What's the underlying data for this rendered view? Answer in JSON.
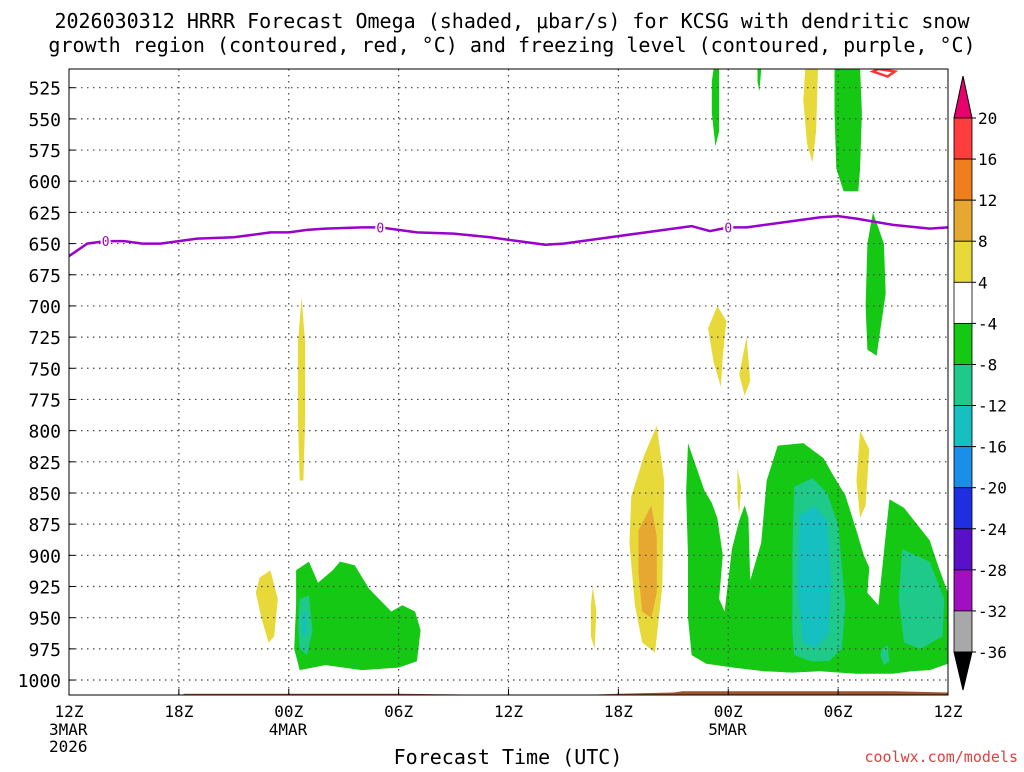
{
  "title_line1": "2026030312 HRRR Forecast Omega (shaded, μbar/s) for KCSG with dendritic snow",
  "title_line2": "growth region (contoured, red, °C) and freezing level (contoured, purple, °C)",
  "credit": "coolwx.com/models",
  "colors": {
    "freezing_level": "#9a00cc",
    "dendritic": "#ff3333",
    "ground": "#a0522d"
  },
  "chart_data": {
    "type": "contour-time-height",
    "xlabel": "Forecast Time (UTC)",
    "x_range_hours": [
      0,
      48
    ],
    "x_ticks": [
      {
        "h": 0,
        "label": "12Z",
        "sub": [
          "3MAR",
          "2026"
        ]
      },
      {
        "h": 6,
        "label": "18Z",
        "sub": []
      },
      {
        "h": 12,
        "label": "00Z",
        "sub": [
          "4MAR"
        ]
      },
      {
        "h": 18,
        "label": "06Z",
        "sub": []
      },
      {
        "h": 24,
        "label": "12Z",
        "sub": []
      },
      {
        "h": 30,
        "label": "18Z",
        "sub": []
      },
      {
        "h": 36,
        "label": "00Z",
        "sub": [
          "5MAR"
        ]
      },
      {
        "h": 42,
        "label": "06Z",
        "sub": []
      },
      {
        "h": 48,
        "label": "12Z",
        "sub": []
      }
    ],
    "y_axis_pressure_levels_hPa": [
      525,
      550,
      575,
      600,
      625,
      650,
      675,
      700,
      725,
      750,
      775,
      800,
      825,
      850,
      875,
      900,
      925,
      950,
      975,
      1000
    ],
    "y_range_hPa": [
      510,
      1012
    ],
    "colorbar": {
      "labels": [
        "20",
        "16",
        "12",
        "8",
        "4",
        "-4",
        "-8",
        "-12",
        "-16",
        "-20",
        "-24",
        "-28",
        "-32",
        "-36"
      ],
      "colors": [
        "#e8006c",
        "#ff3d3d",
        "#ee7f1c",
        "#e6a830",
        "#e8d93a",
        "#ffffff",
        "#14c814",
        "#1ec98a",
        "#16c0c0",
        "#1b8ee8",
        "#1f2ee0",
        "#5a10c8",
        "#a010c0",
        "#a8a8a8",
        "#000000"
      ]
    },
    "freezing_level_line": {
      "label": "0",
      "label_at_hours": [
        2,
        17,
        36
      ],
      "points": [
        [
          0,
          660
        ],
        [
          1,
          650
        ],
        [
          2,
          648
        ],
        [
          3,
          648
        ],
        [
          4,
          650
        ],
        [
          5,
          650
        ],
        [
          6,
          648
        ],
        [
          7,
          646
        ],
        [
          9,
          645
        ],
        [
          10,
          643
        ],
        [
          11,
          641
        ],
        [
          12,
          641
        ],
        [
          13,
          639
        ],
        [
          14,
          638
        ],
        [
          16,
          637
        ],
        [
          17,
          637
        ],
        [
          18,
          639
        ],
        [
          19,
          641
        ],
        [
          21,
          642
        ],
        [
          23,
          645
        ],
        [
          25,
          649
        ],
        [
          26,
          651
        ],
        [
          27,
          650
        ],
        [
          29,
          646
        ],
        [
          31,
          642
        ],
        [
          33,
          638
        ],
        [
          34,
          636
        ],
        [
          35,
          640
        ],
        [
          36,
          637
        ],
        [
          37,
          637
        ],
        [
          39,
          633
        ],
        [
          41,
          629
        ],
        [
          42,
          628
        ],
        [
          43,
          630
        ],
        [
          45,
          635
        ],
        [
          47,
          638
        ],
        [
          48,
          637
        ]
      ]
    },
    "omega_regions": [
      {
        "color": "#e8d93a",
        "points": [
          [
            12.7,
            693
          ],
          [
            12.9,
            730
          ],
          [
            12.9,
            790
          ],
          [
            12.8,
            840
          ],
          [
            12.6,
            840
          ],
          [
            12.5,
            790
          ],
          [
            12.5,
            730
          ]
        ]
      },
      {
        "color": "#e8d93a",
        "points": [
          [
            10.4,
            918
          ],
          [
            11.0,
            912
          ],
          [
            11.4,
            935
          ],
          [
            11.2,
            965
          ],
          [
            10.9,
            970
          ],
          [
            10.5,
            950
          ],
          [
            10.2,
            930
          ]
        ]
      },
      {
        "color": "#14c814",
        "points": [
          [
            12.4,
            912
          ],
          [
            13.1,
            905
          ],
          [
            13.6,
            922
          ],
          [
            14.4,
            912
          ],
          [
            14.8,
            905
          ],
          [
            15.6,
            908
          ],
          [
            16.4,
            927
          ],
          [
            17.6,
            945
          ],
          [
            18.2,
            940
          ],
          [
            18.9,
            945
          ],
          [
            19.2,
            960
          ],
          [
            19.0,
            985
          ],
          [
            18.0,
            990
          ],
          [
            16.0,
            992
          ],
          [
            14.0,
            988
          ],
          [
            12.6,
            992
          ],
          [
            12.3,
            975
          ],
          [
            12.4,
            940
          ]
        ]
      },
      {
        "color": "#1ec98a",
        "points": [
          [
            12.6,
            935
          ],
          [
            13.1,
            932
          ],
          [
            13.3,
            960
          ],
          [
            13.0,
            980
          ],
          [
            12.6,
            975
          ],
          [
            12.5,
            955
          ]
        ]
      },
      {
        "color": "#16c0c0",
        "points": [
          [
            12.7,
            945
          ],
          [
            12.95,
            945
          ],
          [
            13.0,
            962
          ],
          [
            12.75,
            965
          ]
        ]
      },
      {
        "color": "#e8d93a",
        "points": [
          [
            28.6,
            925
          ],
          [
            28.8,
            945
          ],
          [
            28.7,
            975
          ],
          [
            28.5,
            965
          ],
          [
            28.5,
            940
          ]
        ]
      },
      {
        "color": "#e8d93a",
        "points": [
          [
            30.7,
            853
          ],
          [
            31.4,
            820
          ],
          [
            32.1,
            796
          ],
          [
            32.5,
            840
          ],
          [
            32.4,
            925
          ],
          [
            32.0,
            978
          ],
          [
            31.3,
            970
          ],
          [
            30.9,
            940
          ],
          [
            30.6,
            890
          ]
        ]
      },
      {
        "color": "#e6a830",
        "points": [
          [
            31.1,
            880
          ],
          [
            31.8,
            860
          ],
          [
            32.1,
            885
          ],
          [
            32.1,
            930
          ],
          [
            31.8,
            950
          ],
          [
            31.3,
            945
          ],
          [
            31.1,
            915
          ]
        ]
      },
      {
        "color": "#14c814",
        "points": [
          [
            35.2,
            510
          ],
          [
            35.5,
            510
          ],
          [
            35.5,
            560
          ],
          [
            35.3,
            572
          ],
          [
            35.1,
            545
          ],
          [
            35.1,
            520
          ]
        ]
      },
      {
        "color": "#14c814",
        "points": [
          [
            37.6,
            510
          ],
          [
            37.8,
            510
          ],
          [
            37.7,
            528
          ],
          [
            37.6,
            520
          ]
        ]
      },
      {
        "color": "#e8d93a",
        "points": [
          [
            40.2,
            510
          ],
          [
            40.9,
            510
          ],
          [
            40.8,
            560
          ],
          [
            40.6,
            585
          ],
          [
            40.3,
            570
          ],
          [
            40.1,
            535
          ]
        ]
      },
      {
        "color": "#14c814",
        "points": [
          [
            41.8,
            510
          ],
          [
            43.2,
            510
          ],
          [
            43.3,
            545
          ],
          [
            43.2,
            590
          ],
          [
            43.1,
            608
          ],
          [
            42.3,
            608
          ],
          [
            41.9,
            590
          ],
          [
            41.8,
            545
          ]
        ]
      },
      {
        "color": "#e8d93a",
        "points": [
          [
            35.4,
            700
          ],
          [
            35.9,
            712
          ],
          [
            35.7,
            740
          ],
          [
            35.6,
            765
          ],
          [
            35.2,
            745
          ],
          [
            34.9,
            718
          ]
        ]
      },
      {
        "color": "#e8d93a",
        "points": [
          [
            37.0,
            725
          ],
          [
            37.2,
            760
          ],
          [
            36.9,
            772
          ],
          [
            36.6,
            755
          ]
        ]
      },
      {
        "color": "#e8d93a",
        "points": [
          [
            36.5,
            830
          ],
          [
            36.7,
            845
          ],
          [
            36.6,
            868
          ],
          [
            36.5,
            855
          ]
        ]
      },
      {
        "color": "#e8d93a",
        "points": [
          [
            43.2,
            800
          ],
          [
            43.7,
            815
          ],
          [
            43.5,
            860
          ],
          [
            43.2,
            870
          ],
          [
            43.0,
            840
          ]
        ]
      },
      {
        "color": "#14c814",
        "points": [
          [
            43.9,
            625
          ],
          [
            44.5,
            650
          ],
          [
            44.6,
            690
          ],
          [
            44.3,
            720
          ],
          [
            44.1,
            740
          ],
          [
            43.6,
            735
          ],
          [
            43.5,
            700
          ],
          [
            43.6,
            650
          ]
        ]
      },
      {
        "color": "#14c814",
        "points": [
          [
            33.8,
            810
          ],
          [
            34.7,
            848
          ],
          [
            35.1,
            858
          ],
          [
            35.4,
            870
          ],
          [
            35.7,
            900
          ],
          [
            35.5,
            935
          ],
          [
            35.8,
            945
          ],
          [
            36.2,
            895
          ],
          [
            36.6,
            872
          ],
          [
            36.9,
            860
          ],
          [
            37.1,
            870
          ],
          [
            37.2,
            920
          ],
          [
            37.8,
            890
          ],
          [
            38.1,
            840
          ],
          [
            38.7,
            812
          ],
          [
            40.1,
            810
          ],
          [
            41.2,
            822
          ],
          [
            41.7,
            835
          ],
          [
            42.4,
            852
          ],
          [
            43.0,
            880
          ],
          [
            43.4,
            900
          ],
          [
            43.7,
            910
          ],
          [
            43.6,
            930
          ],
          [
            44.2,
            940
          ],
          [
            44.8,
            855
          ],
          [
            45.6,
            862
          ],
          [
            47.0,
            888
          ],
          [
            47.5,
            910
          ],
          [
            48.0,
            930
          ],
          [
            48.0,
            987
          ],
          [
            47.0,
            992
          ],
          [
            46.0,
            993
          ],
          [
            45.0,
            995
          ],
          [
            43.0,
            995
          ],
          [
            41.0,
            993
          ],
          [
            39.5,
            994
          ],
          [
            38.0,
            993
          ],
          [
            36.3,
            990
          ],
          [
            34.8,
            987
          ],
          [
            34.0,
            980
          ],
          [
            33.8,
            950
          ],
          [
            33.8,
            900
          ],
          [
            33.7,
            850
          ]
        ]
      },
      {
        "color": "#1ec98a",
        "points": [
          [
            39.6,
            845
          ],
          [
            40.6,
            838
          ],
          [
            41.4,
            850
          ],
          [
            42.0,
            875
          ],
          [
            42.4,
            940
          ],
          [
            42.2,
            975
          ],
          [
            41.5,
            985
          ],
          [
            40.5,
            985
          ],
          [
            39.6,
            980
          ],
          [
            39.5,
            960
          ],
          [
            39.5,
            900
          ]
        ]
      },
      {
        "color": "#16c0c0",
        "points": [
          [
            39.9,
            868
          ],
          [
            40.7,
            860
          ],
          [
            41.4,
            872
          ],
          [
            41.6,
            920
          ],
          [
            41.5,
            962
          ],
          [
            40.8,
            975
          ],
          [
            40.1,
            970
          ],
          [
            39.8,
            930
          ]
        ]
      },
      {
        "color": "#1ec98a",
        "points": [
          [
            45.5,
            895
          ],
          [
            47.0,
            905
          ],
          [
            47.8,
            935
          ],
          [
            47.7,
            965
          ],
          [
            46.5,
            975
          ],
          [
            45.6,
            970
          ],
          [
            45.3,
            935
          ]
        ]
      },
      {
        "color": "#1ec98a",
        "points": [
          [
            44.4,
            975
          ],
          [
            44.7,
            972
          ],
          [
            44.8,
            985
          ],
          [
            44.5,
            988
          ],
          [
            44.3,
            980
          ]
        ]
      }
    ],
    "dendritic_regions": [
      {
        "points": [
          [
            44.2,
            510
          ],
          [
            45.1,
            512
          ],
          [
            44.7,
            516
          ],
          [
            43.9,
            512
          ]
        ]
      }
    ],
    "ground": {
      "points": [
        [
          0,
          1013
        ],
        [
          6,
          1013
        ],
        [
          6.3,
          1011
        ],
        [
          18,
          1011
        ],
        [
          24,
          1012
        ],
        [
          28,
          1012
        ],
        [
          30,
          1011
        ],
        [
          33,
          1010
        ],
        [
          33.5,
          1009
        ],
        [
          45,
          1009
        ],
        [
          48,
          1010
        ]
      ]
    }
  }
}
